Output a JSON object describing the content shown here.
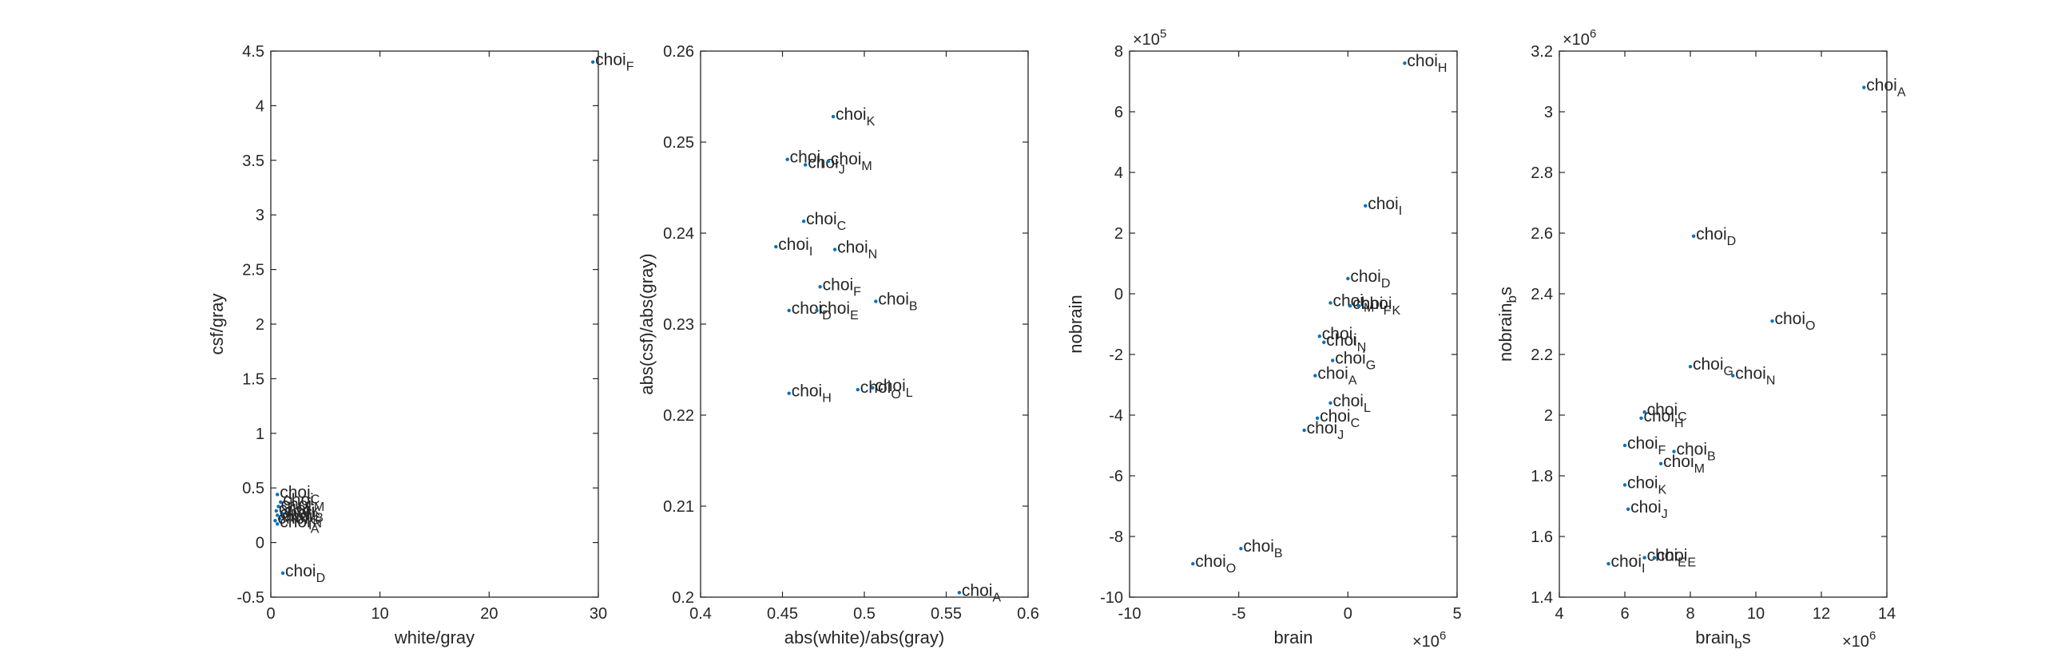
{
  "figure": {
    "point_color": "#0072BD",
    "text_color": "#262626"
  },
  "chart_data": [
    {
      "type": "scatter",
      "xlabel": "white/gray",
      "ylabel": "csf/gray",
      "xlim": [
        0,
        30
      ],
      "ylim": [
        -0.5,
        4.5
      ],
      "xticks": [
        0,
        10,
        20,
        30
      ],
      "xtick_labels": [
        "0",
        "10",
        "20",
        "30"
      ],
      "yticks": [
        -0.5,
        0,
        0.5,
        1,
        1.5,
        2,
        2.5,
        3,
        3.5,
        4,
        4.5
      ],
      "ytick_labels": [
        "-0.5",
        "0",
        "0.5",
        "1",
        "1.5",
        "2",
        "2.5",
        "3",
        "3.5",
        "4",
        "4.5"
      ],
      "x_exponent": "",
      "y_exponent": "",
      "label_prefix": "choi",
      "points": [
        {
          "x": 29.5,
          "y": 4.4,
          "sub": "F"
        },
        {
          "x": 1.1,
          "y": -0.28,
          "sub": "D"
        },
        {
          "x": 0.6,
          "y": 0.44,
          "sub": "C"
        },
        {
          "x": 0.9,
          "y": 0.37,
          "sub": "M"
        },
        {
          "x": 0.7,
          "y": 0.33,
          "sub": "K"
        },
        {
          "x": 0.5,
          "y": 0.29,
          "sub": "J"
        },
        {
          "x": 1.0,
          "y": 0.27,
          "sub": "B"
        },
        {
          "x": 0.6,
          "y": 0.25,
          "sub": "G"
        },
        {
          "x": 0.8,
          "y": 0.22,
          "sub": "N"
        },
        {
          "x": 0.4,
          "y": 0.2,
          "sub": "I"
        },
        {
          "x": 0.6,
          "y": 0.17,
          "sub": "A"
        }
      ]
    },
    {
      "type": "scatter",
      "xlabel": "abs(white)/abs(gray)",
      "ylabel": "abs(csf)/abs(gray)",
      "xlim": [
        0.4,
        0.6
      ],
      "ylim": [
        0.2,
        0.26
      ],
      "xticks": [
        0.4,
        0.45,
        0.5,
        0.55,
        0.6
      ],
      "xtick_labels": [
        "0.4",
        "0.45",
        "0.5",
        "0.55",
        "0.6"
      ],
      "yticks": [
        0.2,
        0.21,
        0.22,
        0.23,
        0.24,
        0.25,
        0.26
      ],
      "ytick_labels": [
        "0.2",
        "0.21",
        "0.22",
        "0.23",
        "0.24",
        "0.25",
        "0.26"
      ],
      "x_exponent": "",
      "y_exponent": "",
      "label_prefix": "choi",
      "points": [
        {
          "x": 0.481,
          "y": 0.2528,
          "sub": "K"
        },
        {
          "x": 0.453,
          "y": 0.2481,
          "sub": "I"
        },
        {
          "x": 0.464,
          "y": 0.2475,
          "sub": "J"
        },
        {
          "x": 0.478,
          "y": 0.2479,
          "sub": "M"
        },
        {
          "x": 0.463,
          "y": 0.2413,
          "sub": "C"
        },
        {
          "x": 0.446,
          "y": 0.2385,
          "sub": "I"
        },
        {
          "x": 0.482,
          "y": 0.2382,
          "sub": "N"
        },
        {
          "x": 0.473,
          "y": 0.2341,
          "sub": "F"
        },
        {
          "x": 0.507,
          "y": 0.2325,
          "sub": "B"
        },
        {
          "x": 0.454,
          "y": 0.2315,
          "sub": "D"
        },
        {
          "x": 0.471,
          "y": 0.2315,
          "sub": "E"
        },
        {
          "x": 0.454,
          "y": 0.2224,
          "sub": "H"
        },
        {
          "x": 0.496,
          "y": 0.2228,
          "sub": "O"
        },
        {
          "x": 0.505,
          "y": 0.223,
          "sub": "L"
        },
        {
          "x": 0.558,
          "y": 0.2005,
          "sub": "A"
        }
      ]
    },
    {
      "type": "scatter",
      "xlabel": "brain",
      "ylabel": "nobrain",
      "xlim": [
        -10,
        5
      ],
      "ylim": [
        -10,
        8
      ],
      "xticks": [
        -10,
        -5,
        0,
        5
      ],
      "xtick_labels": [
        "-10",
        "-5",
        "0",
        "5"
      ],
      "yticks": [
        -10,
        -8,
        -6,
        -4,
        -2,
        0,
        2,
        4,
        6,
        8
      ],
      "ytick_labels": [
        "-10",
        "-8",
        "-6",
        "-4",
        "-2",
        "0",
        "2",
        "4",
        "6",
        "8"
      ],
      "x_exponent": "6",
      "y_exponent": "5",
      "label_prefix": "choi",
      "points": [
        {
          "x": 2.6,
          "y": 7.6,
          "sub": "H"
        },
        {
          "x": 0.8,
          "y": 2.9,
          "sub": "I"
        },
        {
          "x": 0.0,
          "y": 0.5,
          "sub": "D"
        },
        {
          "x": -0.8,
          "y": -0.3,
          "sub": "M"
        },
        {
          "x": 0.1,
          "y": -0.4,
          "sub": "F"
        },
        {
          "x": 0.5,
          "y": -0.4,
          "sub": "K"
        },
        {
          "x": -1.3,
          "y": -1.4,
          "sub": "I"
        },
        {
          "x": -1.1,
          "y": -1.6,
          "sub": "N"
        },
        {
          "x": -0.7,
          "y": -2.2,
          "sub": "G"
        },
        {
          "x": -1.5,
          "y": -2.7,
          "sub": "A"
        },
        {
          "x": -0.8,
          "y": -3.6,
          "sub": "L"
        },
        {
          "x": -1.4,
          "y": -4.1,
          "sub": "C"
        },
        {
          "x": -2.0,
          "y": -4.5,
          "sub": "J"
        },
        {
          "x": -4.9,
          "y": -8.4,
          "sub": "B"
        },
        {
          "x": -7.1,
          "y": -8.9,
          "sub": "O"
        }
      ]
    },
    {
      "type": "scatter",
      "xlabel": "brain_bs",
      "ylabel": "nobrain_bs",
      "xlim": [
        4,
        14
      ],
      "ylim": [
        1.4,
        3.2
      ],
      "xticks": [
        4,
        6,
        8,
        10,
        12,
        14
      ],
      "xtick_labels": [
        "4",
        "6",
        "8",
        "10",
        "12",
        "14"
      ],
      "yticks": [
        1.4,
        1.6,
        1.8,
        2,
        2.2,
        2.4,
        2.6,
        2.8,
        3,
        3.2
      ],
      "ytick_labels": [
        "1.4",
        "1.6",
        "1.8",
        "2",
        "2.2",
        "2.4",
        "2.6",
        "2.8",
        "3",
        "3.2"
      ],
      "x_exponent": "6",
      "y_exponent": "6",
      "label_prefix": "choi",
      "points": [
        {
          "x": 13.3,
          "y": 3.08,
          "sub": "A"
        },
        {
          "x": 8.1,
          "y": 2.59,
          "sub": "D"
        },
        {
          "x": 10.5,
          "y": 2.31,
          "sub": "O"
        },
        {
          "x": 8.0,
          "y": 2.16,
          "sub": "G"
        },
        {
          "x": 9.3,
          "y": 2.13,
          "sub": "N"
        },
        {
          "x": 6.6,
          "y": 2.01,
          "sub": "C"
        },
        {
          "x": 6.5,
          "y": 1.99,
          "sub": "H"
        },
        {
          "x": 6.0,
          "y": 1.9,
          "sub": "F"
        },
        {
          "x": 7.5,
          "y": 1.88,
          "sub": "B"
        },
        {
          "x": 7.1,
          "y": 1.84,
          "sub": "M"
        },
        {
          "x": 6.0,
          "y": 1.77,
          "sub": "K"
        },
        {
          "x": 6.1,
          "y": 1.69,
          "sub": "J"
        },
        {
          "x": 6.6,
          "y": 1.53,
          "sub": "E"
        },
        {
          "x": 6.9,
          "y": 1.53,
          "sub": "E"
        },
        {
          "x": 5.5,
          "y": 1.51,
          "sub": "I"
        }
      ]
    }
  ]
}
